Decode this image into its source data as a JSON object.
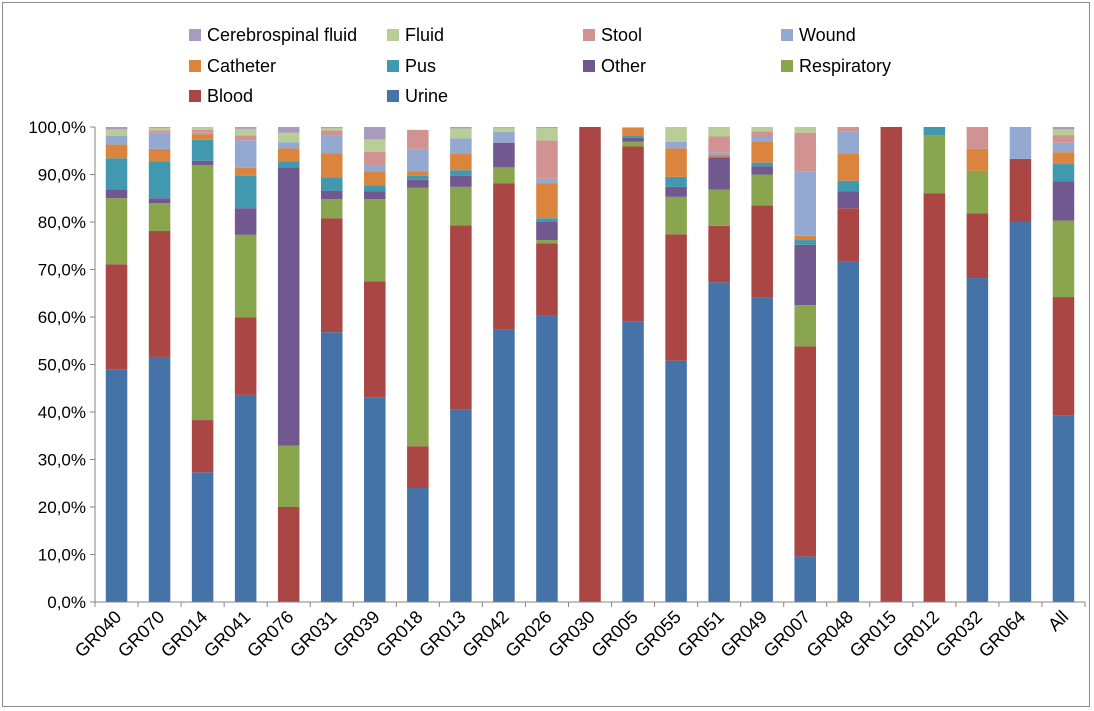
{
  "chart_data": {
    "type": "bar",
    "stacked": true,
    "percent": true,
    "title": "",
    "xlabel": "",
    "ylabel": "",
    "ylim": [
      0,
      100
    ],
    "ytick_labels": [
      "0,0%",
      "10,0%",
      "20,0%",
      "30,0%",
      "40,0%",
      "50,0%",
      "60,0%",
      "70,0%",
      "80,0%",
      "90,0%",
      "100,0%"
    ],
    "grid": false,
    "legend_position": "top",
    "categories": [
      "GR040",
      "GR070",
      "GR014",
      "GR041",
      "GR076",
      "GR031",
      "GR039",
      "GR018",
      "GR013",
      "GR042",
      "GR026",
      "GR030",
      "GR005",
      "GR055",
      "GR051",
      "GR049",
      "GR007",
      "GR048",
      "GR015",
      "GR012",
      "GR032",
      "GR064",
      "All"
    ],
    "series": [
      {
        "name": "Urine",
        "color": "#4573a7",
        "values": [
          49.0,
          51.6,
          27.3,
          43.6,
          0,
          56.8,
          43.1,
          24.0,
          40.5,
          57.4,
          60.3,
          0,
          59.1,
          50.8,
          67.3,
          64.2,
          9.6,
          71.6,
          0,
          0,
          68.2,
          80.0,
          39.3
        ]
      },
      {
        "name": "Blood",
        "color": "#aa4643",
        "values": [
          22.1,
          26.5,
          11.0,
          16.3,
          20.0,
          24.0,
          24.4,
          8.8,
          38.8,
          30.7,
          15.2,
          100,
          36.8,
          26.6,
          11.9,
          19.3,
          44.2,
          11.3,
          100,
          86.0,
          13.6,
          13.3,
          24.9
        ]
      },
      {
        "name": "Respiratory",
        "color": "#89a54e",
        "values": [
          13.9,
          5.9,
          53.7,
          17.4,
          12.9,
          4.0,
          17.3,
          54.4,
          8.1,
          3.4,
          0.7,
          0,
          1.0,
          7.9,
          7.6,
          6.5,
          8.7,
          0,
          0,
          12.3,
          9.0,
          0,
          16.1
        ]
      },
      {
        "name": "Other",
        "color": "#71588f",
        "values": [
          1.9,
          1.0,
          0.9,
          5.6,
          58.6,
          1.8,
          1.7,
          1.7,
          2.3,
          5.2,
          3.8,
          0,
          0.8,
          2.1,
          6.8,
          1.7,
          12.7,
          3.6,
          0,
          0,
          0,
          0,
          8.3
        ]
      },
      {
        "name": "Pus",
        "color": "#4198af",
        "values": [
          6.5,
          7.8,
          4.4,
          6.8,
          1.3,
          2.8,
          1.2,
          0.8,
          1.2,
          0,
          0.8,
          0,
          0.4,
          2.1,
          0,
          0.8,
          1.0,
          2.2,
          0,
          1.7,
          0,
          0,
          3.6
        ]
      },
      {
        "name": "Catheter",
        "color": "#db843d",
        "values": [
          2.9,
          2.6,
          1.2,
          1.7,
          2.7,
          5.1,
          3.0,
          1.0,
          3.5,
          0,
          7.3,
          0,
          1.7,
          6.0,
          0.5,
          4.5,
          0.9,
          5.7,
          0,
          0,
          4.6,
          0,
          2.5
        ]
      },
      {
        "name": "Wound",
        "color": "#93a9cf",
        "values": [
          1.8,
          3.4,
          0.3,
          5.8,
          1.3,
          3.8,
          1.3,
          4.7,
          3.2,
          2.3,
          1.0,
          0,
          0,
          1.4,
          0.5,
          1.0,
          13.6,
          4.6,
          0,
          0,
          0,
          6.7,
          2.0
        ]
      },
      {
        "name": "Stool",
        "color": "#d19392",
        "values": [
          0,
          0.5,
          0.6,
          1.0,
          0,
          1.0,
          2.8,
          4.0,
          0,
          0,
          8.1,
          0,
          0,
          0,
          3.4,
          1.1,
          8.1,
          1.0,
          0,
          0,
          4.6,
          0,
          1.6
        ]
      },
      {
        "name": "Fluid",
        "color": "#b9cd96",
        "values": [
          1.4,
          0.5,
          0.6,
          1.4,
          2.0,
          0.5,
          2.6,
          0,
          2.1,
          0.9,
          2.6,
          0,
          0.2,
          3.1,
          2.0,
          0.9,
          1.2,
          0,
          0,
          0,
          0,
          0,
          1.2
        ]
      },
      {
        "name": "Cerebrospinal fluid",
        "color": "#a99bbd",
        "values": [
          0.5,
          0.2,
          0,
          0.4,
          1.2,
          0.2,
          2.6,
          0,
          0.3,
          0.1,
          0.2,
          0,
          0,
          0,
          0,
          0,
          0,
          0,
          0,
          0,
          0,
          0,
          0.5
        ]
      }
    ],
    "legend_rows": [
      [
        "Cerebrospinal fluid",
        "Fluid",
        "Stool",
        "Wound"
      ],
      [
        "Catheter",
        "Pus",
        "Other",
        "Respiratory"
      ],
      [
        "Blood",
        "Urine"
      ]
    ]
  }
}
